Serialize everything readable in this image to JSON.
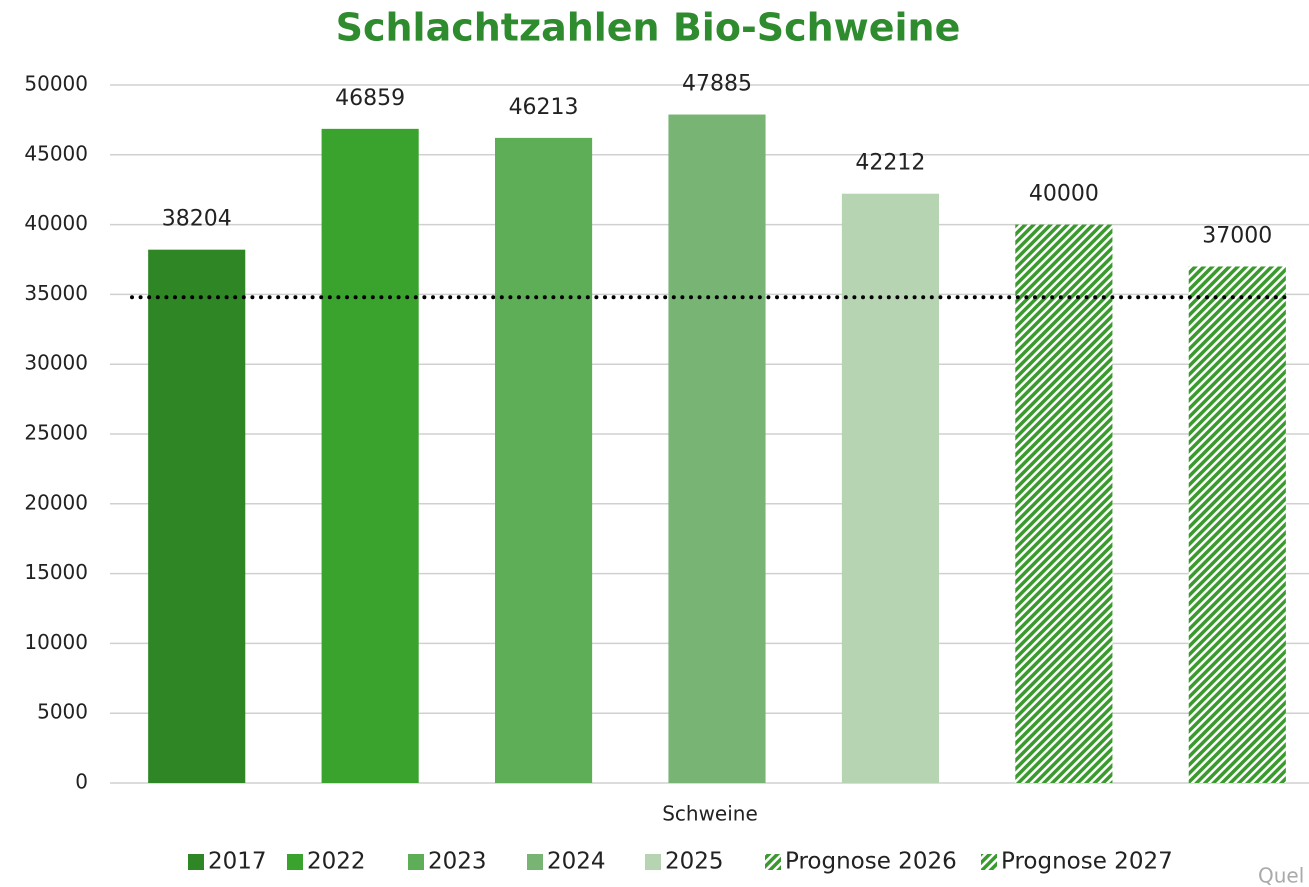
{
  "chart_data": {
    "type": "bar",
    "title": "Schlachtzahlen Bio-Schweine",
    "categories": [
      "Schweine"
    ],
    "series": [
      {
        "name": "2017",
        "color": "#2e8624",
        "values": [
          38204
        ]
      },
      {
        "name": "2022",
        "color": "#3aa32d",
        "values": [
          46859
        ]
      },
      {
        "name": "2023",
        "color": "#5dae56",
        "values": [
          46213
        ]
      },
      {
        "name": "2024",
        "color": "#78b474",
        "values": [
          47885
        ]
      },
      {
        "name": "2025",
        "color": "#b6d4b2",
        "values": [
          42212
        ]
      },
      {
        "name": "Prognose 2026",
        "color": "#3a9a2d",
        "pattern": "hatch",
        "values": [
          40000
        ]
      },
      {
        "name": "Prognose 2027",
        "color": "#3a9a2d",
        "pattern": "hatch",
        "values": [
          37000
        ]
      }
    ],
    "reference_line": {
      "value": 34800,
      "style": "dotted",
      "color": "#000000"
    },
    "ylim": [
      0,
      50000
    ],
    "yticks": [
      0,
      5000,
      10000,
      15000,
      20000,
      25000,
      30000,
      35000,
      40000,
      45000,
      50000
    ],
    "grid": true,
    "legend": "bottom",
    "source": "Quel"
  }
}
